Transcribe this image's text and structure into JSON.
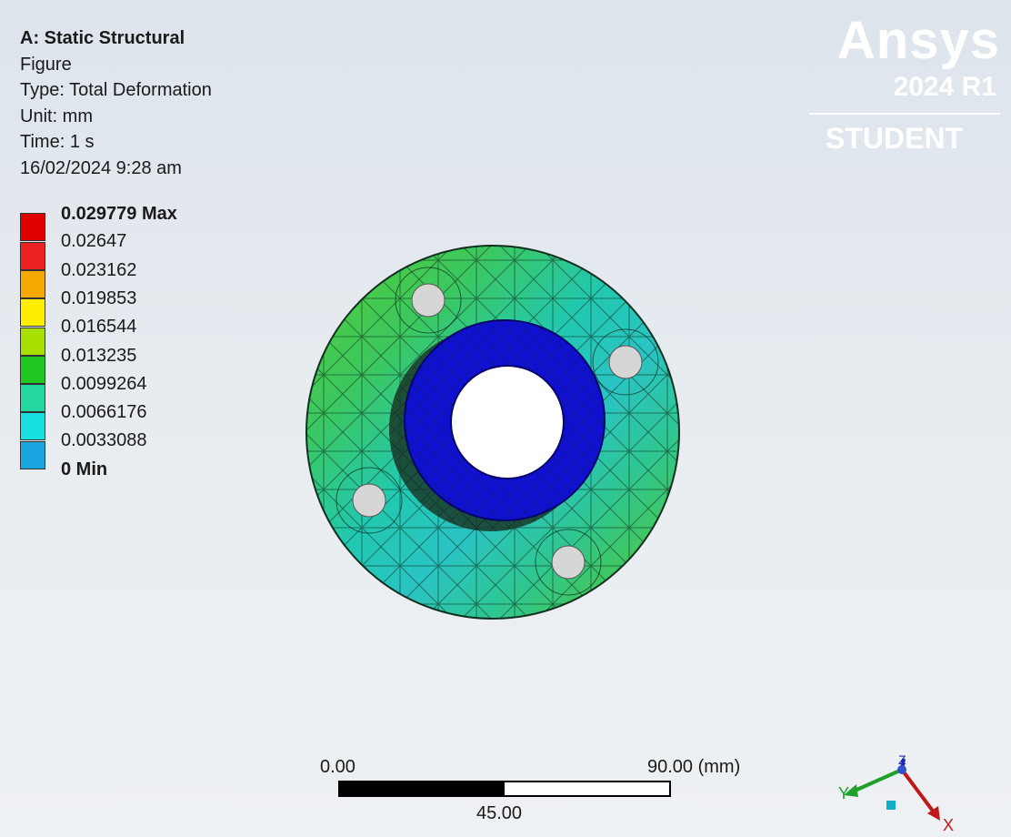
{
  "header": {
    "title": "A: Static Structural",
    "figure": "Figure",
    "type": "Type: Total Deformation",
    "unit": "Unit: mm",
    "time": "Time: 1 s",
    "date": "16/02/2024 9:28 am"
  },
  "legend": {
    "entries": [
      {
        "label": "0.029779 Max",
        "color": "#e00000",
        "bold": true
      },
      {
        "label": "0.02647",
        "color": "#ee2222"
      },
      {
        "label": "0.023162",
        "color": "#f4a800"
      },
      {
        "label": "0.019853",
        "color": "#ffee00"
      },
      {
        "label": "0.016544",
        "color": "#a8e000"
      },
      {
        "label": "0.013235",
        "color": "#22c822"
      },
      {
        "label": "0.0099264",
        "color": "#22d8a0"
      },
      {
        "label": "0.0066176",
        "color": "#18e0e0"
      },
      {
        "label": "0.0033088",
        "color": "#1aa6e0"
      },
      {
        "label": "0 Min",
        "color": "#0000e0",
        "bold": true
      }
    ]
  },
  "logo": {
    "brand": "Ansys",
    "release": "2024 R1",
    "edition": "STUDENT"
  },
  "scale_bar": {
    "start": "0.00",
    "mid": "45.00",
    "end": "90.00 (mm)"
  },
  "triad": {
    "x_label": "X",
    "y_label": "Y",
    "z_label": "Z"
  },
  "colors": {
    "background_top": "#dde4ec",
    "background_bottom": "#eef1f3",
    "logo_text": "#ffffff"
  }
}
